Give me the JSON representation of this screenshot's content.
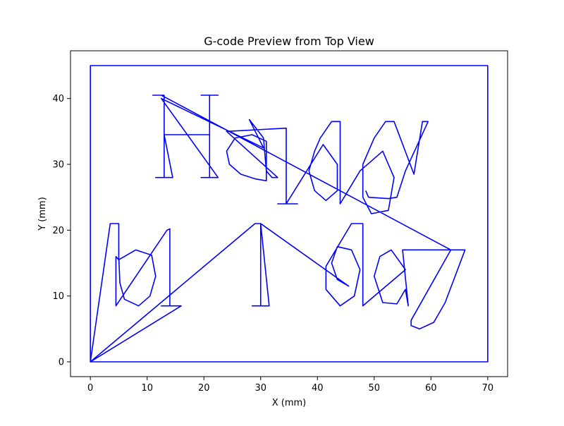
{
  "chart_data": {
    "type": "line",
    "title": "G-code Preview from Top View",
    "xlabel": "X (mm)",
    "ylabel": "Y (mm)",
    "xlim": [
      -3.5,
      73.5
    ],
    "ylim": [
      -2.25,
      47.25
    ],
    "x_ticks": [
      0,
      10,
      20,
      30,
      40,
      50,
      60,
      70
    ],
    "y_ticks": [
      0,
      10,
      20,
      30,
      40
    ],
    "grid": false,
    "line_color": "#0000ff",
    "series": [
      {
        "values": [
          {
            "x": 0,
            "y": 0
          },
          {
            "x": 70,
            "y": 0
          },
          {
            "x": 70,
            "y": 45
          },
          {
            "x": 0,
            "y": 45
          },
          {
            "x": 0,
            "y": 0
          },
          {
            "x": 3.5,
            "y": 21
          },
          {
            "x": 5,
            "y": 21
          },
          {
            "x": 5,
            "y": 16
          },
          {
            "x": 5.2,
            "y": 12
          },
          {
            "x": 6,
            "y": 9.5
          },
          {
            "x": 8.5,
            "y": 8.5
          },
          {
            "x": 10.5,
            "y": 10
          },
          {
            "x": 11.5,
            "y": 13
          },
          {
            "x": 10.8,
            "y": 16.2
          },
          {
            "x": 8,
            "y": 17
          },
          {
            "x": 5,
            "y": 15.5
          },
          {
            "x": 4.5,
            "y": 16
          },
          {
            "x": 4.5,
            "y": 8.5
          },
          {
            "x": 13.5,
            "y": 20
          },
          {
            "x": 14,
            "y": 20.2
          },
          {
            "x": 14,
            "y": 17
          },
          {
            "x": 14,
            "y": 8.5
          },
          {
            "x": 12.5,
            "y": 8.5
          },
          {
            "x": 16,
            "y": 8.5
          },
          {
            "x": 0,
            "y": 0
          },
          {
            "x": 29,
            "y": 21
          },
          {
            "x": 30,
            "y": 21
          },
          {
            "x": 30,
            "y": 8.5
          },
          {
            "x": 28.5,
            "y": 8.5
          },
          {
            "x": 31.5,
            "y": 8.5
          },
          {
            "x": 30,
            "y": 21
          },
          {
            "x": 45.5,
            "y": 11.5
          },
          {
            "x": 43.5,
            "y": 12.5
          },
          {
            "x": 42.5,
            "y": 15
          },
          {
            "x": 43.5,
            "y": 17.5
          },
          {
            "x": 46,
            "y": 17
          },
          {
            "x": 47.5,
            "y": 14
          },
          {
            "x": 46.5,
            "y": 10
          },
          {
            "x": 44,
            "y": 8.5
          },
          {
            "x": 41.5,
            "y": 11
          },
          {
            "x": 41.5,
            "y": 14.5
          },
          {
            "x": 46,
            "y": 21
          },
          {
            "x": 48,
            "y": 21
          },
          {
            "x": 48,
            "y": 8.5
          },
          {
            "x": 55.5,
            "y": 14
          },
          {
            "x": 53,
            "y": 17
          },
          {
            "x": 51,
            "y": 16
          },
          {
            "x": 50,
            "y": 13
          },
          {
            "x": 51.5,
            "y": 9
          },
          {
            "x": 54,
            "y": 8.8
          },
          {
            "x": 55.5,
            "y": 11
          },
          {
            "x": 56,
            "y": 8.5
          },
          {
            "x": 55,
            "y": 17
          },
          {
            "x": 64.5,
            "y": 17
          },
          {
            "x": 66,
            "y": 17
          },
          {
            "x": 62.5,
            "y": 9
          },
          {
            "x": 60.5,
            "y": 6
          },
          {
            "x": 58,
            "y": 5
          },
          {
            "x": 56.5,
            "y": 5.5
          },
          {
            "x": 56.5,
            "y": 6.3
          },
          {
            "x": 63.5,
            "y": 17
          },
          {
            "x": 12.5,
            "y": 40.5
          },
          {
            "x": 11,
            "y": 40.5
          },
          {
            "x": 13,
            "y": 40.5
          },
          {
            "x": 13,
            "y": 28
          },
          {
            "x": 11.5,
            "y": 28
          },
          {
            "x": 14.5,
            "y": 28
          },
          {
            "x": 13,
            "y": 34.5
          },
          {
            "x": 21,
            "y": 34.5
          },
          {
            "x": 21,
            "y": 40.5
          },
          {
            "x": 19.5,
            "y": 40.5
          },
          {
            "x": 22.5,
            "y": 40.5
          },
          {
            "x": 21,
            "y": 40.5
          },
          {
            "x": 21,
            "y": 28
          },
          {
            "x": 19.5,
            "y": 28
          },
          {
            "x": 22.5,
            "y": 28
          },
          {
            "x": 12.5,
            "y": 40
          },
          {
            "x": 30.5,
            "y": 32.5
          },
          {
            "x": 28,
            "y": 36.8
          },
          {
            "x": 30.5,
            "y": 34
          },
          {
            "x": 31,
            "y": 29
          },
          {
            "x": 31,
            "y": 27.5
          },
          {
            "x": 29,
            "y": 27.8
          },
          {
            "x": 26.5,
            "y": 28.5
          },
          {
            "x": 24.5,
            "y": 30
          },
          {
            "x": 24,
            "y": 32
          },
          {
            "x": 25.5,
            "y": 34
          },
          {
            "x": 28.5,
            "y": 34.5
          },
          {
            "x": 31,
            "y": 33.5
          },
          {
            "x": 31,
            "y": 29
          },
          {
            "x": 32,
            "y": 28
          },
          {
            "x": 33,
            "y": 28
          },
          {
            "x": 24,
            "y": 35
          },
          {
            "x": 34.5,
            "y": 35.5
          },
          {
            "x": 34.5,
            "y": 24
          },
          {
            "x": 33,
            "y": 24
          },
          {
            "x": 36.5,
            "y": 24
          },
          {
            "x": 34.5,
            "y": 24
          },
          {
            "x": 41,
            "y": 33
          },
          {
            "x": 43.5,
            "y": 30
          },
          {
            "x": 43.5,
            "y": 26
          },
          {
            "x": 41.5,
            "y": 24.5
          },
          {
            "x": 39.5,
            "y": 26
          },
          {
            "x": 38.5,
            "y": 29
          },
          {
            "x": 39.5,
            "y": 32
          },
          {
            "x": 40.5,
            "y": 34
          },
          {
            "x": 42.5,
            "y": 36.5
          },
          {
            "x": 44,
            "y": 36.5
          },
          {
            "x": 44,
            "y": 24
          },
          {
            "x": 47.5,
            "y": 29
          },
          {
            "x": 51.5,
            "y": 32
          },
          {
            "x": 53.5,
            "y": 28
          },
          {
            "x": 52.5,
            "y": 23
          },
          {
            "x": 49.5,
            "y": 22.5
          },
          {
            "x": 48,
            "y": 25
          },
          {
            "x": 48,
            "y": 30
          },
          {
            "x": 50,
            "y": 34
          },
          {
            "x": 52,
            "y": 36.5
          },
          {
            "x": 53.5,
            "y": 36.5
          },
          {
            "x": 57,
            "y": 28.5
          },
          {
            "x": 58.5,
            "y": 36.5
          },
          {
            "x": 59.5,
            "y": 36.5
          },
          {
            "x": 55.5,
            "y": 29
          },
          {
            "x": 54,
            "y": 25
          },
          {
            "x": 52.5,
            "y": 24.8
          },
          {
            "x": 49,
            "y": 25
          },
          {
            "x": 48.5,
            "y": 26
          }
        ]
      }
    ]
  }
}
